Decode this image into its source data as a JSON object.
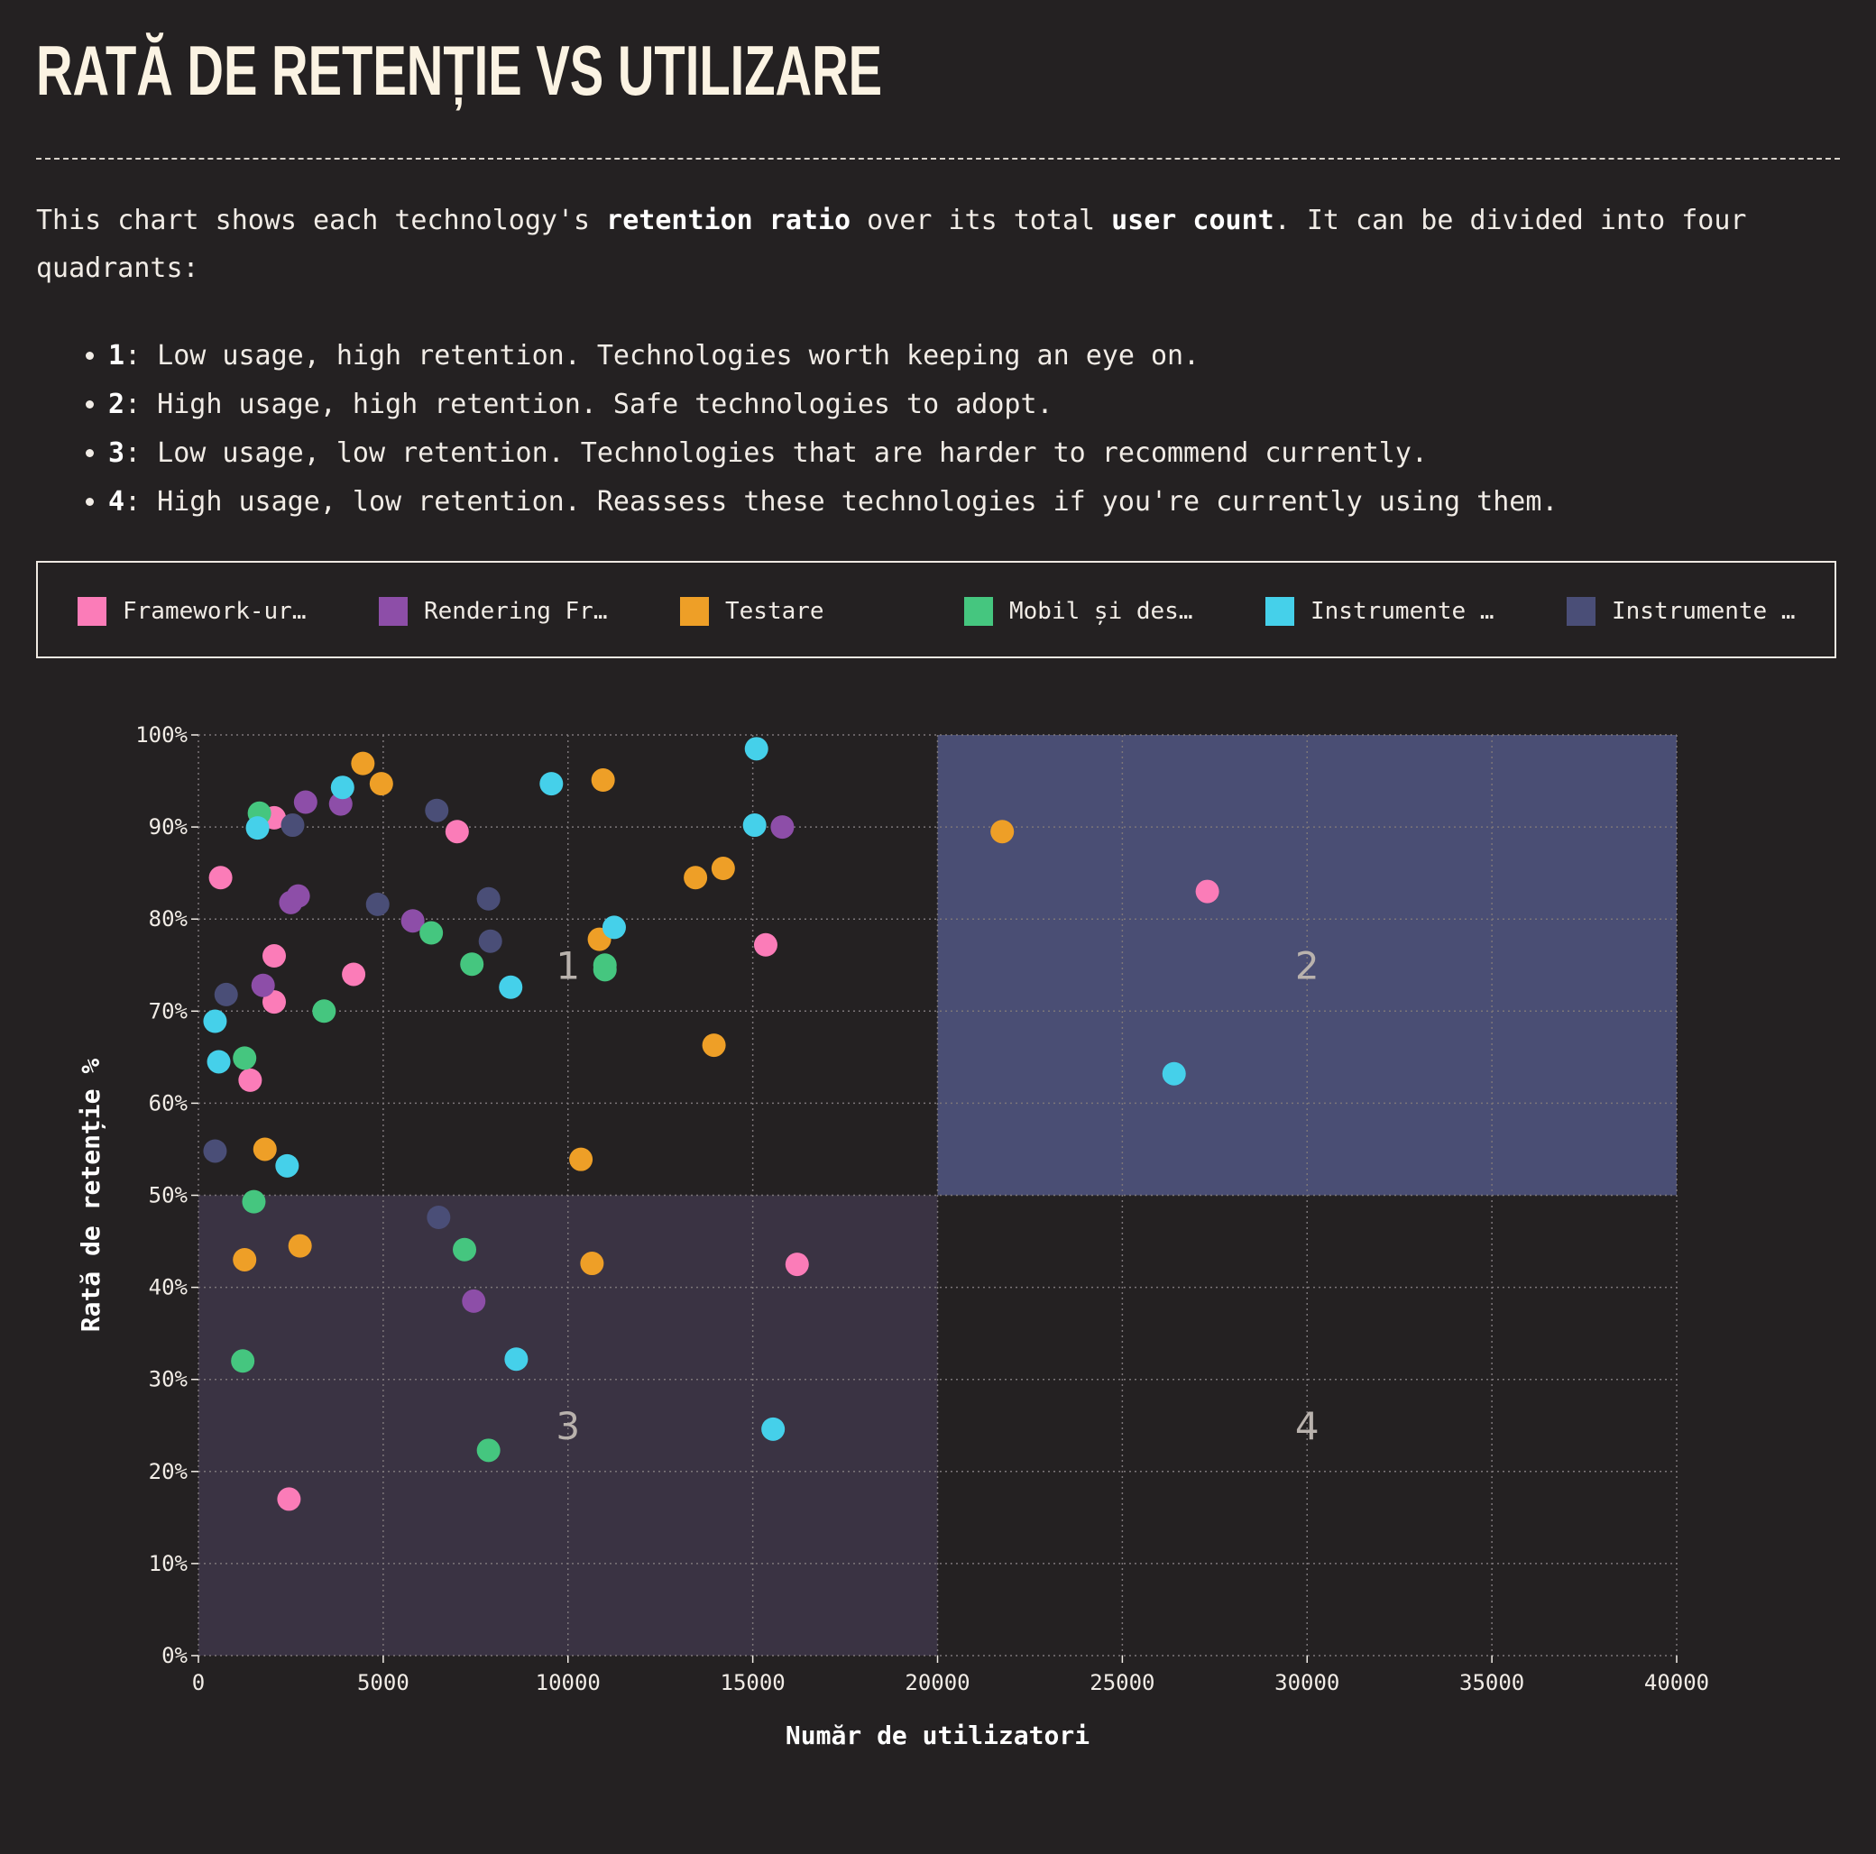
{
  "header": {
    "title": "RATĂ DE RETENȚIE VS UTILIZARE"
  },
  "intro": {
    "part1": "This chart shows each technology's ",
    "bold1": "retention ratio",
    "part2": " over its total ",
    "bold2": "user count",
    "part3": ". It can be divided into four quadrants:"
  },
  "quadrants": [
    {
      "num": "1",
      "text": ": Low usage, high retention. Technologies worth keeping an eye on."
    },
    {
      "num": "2",
      "text": ": High usage, high retention. Safe technologies to adopt."
    },
    {
      "num": "3",
      "text": ": Low usage, low retention. Technologies that are harder to recommend currently."
    },
    {
      "num": "4",
      "text": ": High usage, low retention. Reassess these technologies if you're currently using them."
    }
  ],
  "legend": [
    {
      "label": "Framework-ur…",
      "color": "#fb7cb8"
    },
    {
      "label": "Rendering Fr…",
      "color": "#8d4ea8"
    },
    {
      "label": "Testare",
      "color": "#ee9f27"
    },
    {
      "label": "Mobil și des…",
      "color": "#45c67f"
    },
    {
      "label": "Instrumente …",
      "color": "#45d0ea"
    },
    {
      "label": "Instrumente …",
      "color": "#4a4e77"
    }
  ],
  "chart_data": {
    "type": "scatter",
    "xlabel": "Număr de utilizatori",
    "ylabel": "Rată de retenție %",
    "xlim": [
      0,
      40000
    ],
    "ylim": [
      0,
      100
    ],
    "x_ticks": [
      "0",
      "5000",
      "10000",
      "15000",
      "20000",
      "25000",
      "30000",
      "35000",
      "40000"
    ],
    "y_ticks": [
      "0%",
      "10%",
      "20%",
      "30%",
      "40%",
      "50%",
      "60%",
      "70%",
      "80%",
      "90%",
      "100%"
    ],
    "grid": true,
    "quadrant_labels": [
      "1",
      "2",
      "3",
      "4"
    ],
    "quadrant_split": {
      "x": 20000,
      "y": 50
    },
    "quadrant_colors": {
      "high_high": "#4a4e74",
      "low_low": "#3a3343"
    },
    "series": [
      {
        "color": "#fb7cb8",
        "points": [
          [
            600,
            84.5
          ],
          [
            2050,
            91
          ],
          [
            2050,
            76
          ],
          [
            2050,
            71
          ],
          [
            1400,
            62.5
          ],
          [
            4200,
            74
          ],
          [
            7000,
            89.5
          ],
          [
            15350,
            77.2
          ],
          [
            16200,
            42.5
          ],
          [
            2450,
            17
          ],
          [
            27300,
            83
          ]
        ]
      },
      {
        "color": "#8d4ea8",
        "points": [
          [
            2900,
            92.7
          ],
          [
            3850,
            92.5
          ],
          [
            2500,
            81.8
          ],
          [
            2700,
            82.5
          ],
          [
            1750,
            72.8
          ],
          [
            5800,
            79.8
          ],
          [
            15800,
            90
          ],
          [
            7450,
            38.5
          ]
        ]
      },
      {
        "color": "#ee9f27",
        "points": [
          [
            4450,
            96.9
          ],
          [
            4950,
            94.7
          ],
          [
            10950,
            95.1
          ],
          [
            13450,
            84.5
          ],
          [
            14200,
            85.5
          ],
          [
            10850,
            77.8
          ],
          [
            13950,
            66.3
          ],
          [
            1800,
            55
          ],
          [
            10350,
            53.9
          ],
          [
            1250,
            43
          ],
          [
            2750,
            44.5
          ],
          [
            10650,
            42.6
          ],
          [
            21750,
            89.5
          ]
        ]
      },
      {
        "color": "#45c67f",
        "points": [
          [
            1650,
            91.5
          ],
          [
            6300,
            78.5
          ],
          [
            7400,
            75.1
          ],
          [
            11000,
            75
          ],
          [
            11000,
            74.5
          ],
          [
            3400,
            70
          ],
          [
            1250,
            64.9
          ],
          [
            1500,
            49.3
          ],
          [
            7200,
            44.1
          ],
          [
            1200,
            32
          ],
          [
            7850,
            22.3
          ]
        ]
      },
      {
        "color": "#45d0ea",
        "points": [
          [
            3900,
            94.3
          ],
          [
            9550,
            94.7
          ],
          [
            15100,
            98.5
          ],
          [
            15050,
            90.2
          ],
          [
            1600,
            89.9
          ],
          [
            11250,
            79.1
          ],
          [
            8450,
            72.6
          ],
          [
            450,
            68.9
          ],
          [
            550,
            64.5
          ],
          [
            2400,
            53.2
          ],
          [
            8600,
            32.2
          ],
          [
            15550,
            24.6
          ],
          [
            26400,
            63.2
          ]
        ]
      },
      {
        "color": "#4a4e77",
        "points": [
          [
            6450,
            91.8
          ],
          [
            2550,
            90.2
          ],
          [
            4850,
            81.6
          ],
          [
            7850,
            82.2
          ],
          [
            7900,
            77.6
          ],
          [
            750,
            71.8
          ],
          [
            450,
            54.8
          ],
          [
            6500,
            47.6
          ]
        ]
      }
    ]
  }
}
